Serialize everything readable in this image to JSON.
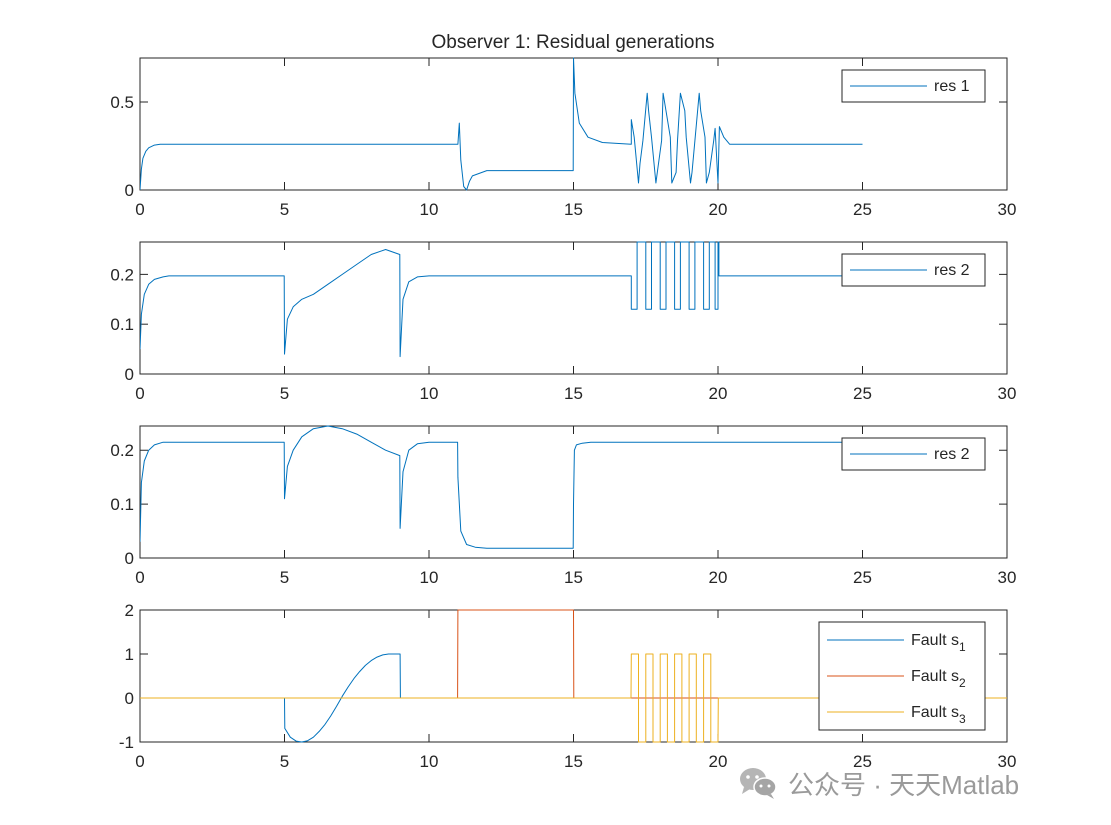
{
  "figure": {
    "title": "Observer 1: Residual generations",
    "watermark_text": "公众号 · 天天Matlab",
    "watermark_icon": "wechat-icon"
  },
  "chart_data": [
    {
      "type": "line",
      "title": "Observer 1: Residual generations",
      "xlim": [
        0,
        30
      ],
      "ylim": [
        0,
        0.75
      ],
      "xticks": [
        0,
        5,
        10,
        15,
        20,
        25,
        30
      ],
      "yticks": [
        0,
        0.5
      ],
      "ytick_labels": [
        "0",
        "0.5"
      ],
      "grid": false,
      "legend_position": "top-right",
      "series": [
        {
          "name": "res 1",
          "color": "#0072BD",
          "x": [
            0,
            0.05,
            0.1,
            0.2,
            0.3,
            0.5,
            0.7,
            1,
            11,
            11.05,
            11.1,
            11.2,
            11.3,
            11.4,
            11.5,
            12,
            14.99,
            15,
            15.05,
            15.2,
            15.5,
            16,
            17,
            17,
            17.1,
            17.25,
            17.3,
            17.4,
            17.55,
            17.6,
            17.7,
            17.85,
            17.9,
            18.05,
            18.1,
            18.2,
            18.35,
            18.4,
            18.55,
            18.6,
            18.7,
            18.85,
            18.9,
            19.05,
            19.1,
            19.2,
            19.35,
            19.4,
            19.55,
            19.6,
            19.7,
            19.85,
            19.9,
            20,
            20.05,
            20.2,
            20.4,
            25
          ],
          "y": [
            0,
            0.12,
            0.18,
            0.22,
            0.24,
            0.255,
            0.26,
            0.26,
            0.26,
            0.38,
            0.17,
            0.02,
            0,
            0.05,
            0.08,
            0.11,
            0.11,
            0.75,
            0.55,
            0.38,
            0.3,
            0.27,
            0.26,
            0.4,
            0.3,
            0.04,
            0.15,
            0.28,
            0.55,
            0.45,
            0.3,
            0.04,
            0.1,
            0.28,
            0.55,
            0.45,
            0.3,
            0.04,
            0.1,
            0.28,
            0.55,
            0.45,
            0.3,
            0.04,
            0.1,
            0.28,
            0.55,
            0.45,
            0.3,
            0.04,
            0.1,
            0.28,
            0.35,
            0.04,
            0.36,
            0.3,
            0.26,
            0.26
          ]
        }
      ]
    },
    {
      "type": "line",
      "xlim": [
        0,
        30
      ],
      "ylim": [
        0,
        0.265
      ],
      "xticks": [
        0,
        5,
        10,
        15,
        20,
        25,
        30
      ],
      "yticks": [
        0,
        0.1,
        0.2
      ],
      "ytick_labels": [
        "0",
        "0.1",
        "0.2"
      ],
      "grid": false,
      "legend_position": "top-right",
      "series": [
        {
          "name": "res 2",
          "color": "#0072BD",
          "x": [
            0,
            0.05,
            0.15,
            0.3,
            0.5,
            0.8,
            1,
            4.99,
            5,
            5.1,
            5.3,
            5.6,
            6,
            6.5,
            7,
            7.5,
            8,
            8.5,
            8.99,
            9,
            9.1,
            9.3,
            9.6,
            10,
            17,
            17,
            17.2,
            17.2,
            17.5,
            17.5,
            17.7,
            17.7,
            18,
            18,
            18.2,
            18.2,
            18.5,
            18.5,
            18.7,
            18.7,
            19,
            19,
            19.2,
            19.2,
            19.5,
            19.5,
            19.7,
            19.7,
            19.9,
            19.9,
            20,
            20,
            20.03,
            20.03,
            25
          ],
          "y": [
            0.05,
            0.12,
            0.16,
            0.18,
            0.19,
            0.195,
            0.197,
            0.197,
            0.04,
            0.11,
            0.135,
            0.15,
            0.16,
            0.18,
            0.2,
            0.22,
            0.24,
            0.25,
            0.24,
            0.035,
            0.15,
            0.185,
            0.195,
            0.197,
            0.197,
            0.13,
            0.13,
            0.265,
            0.265,
            0.13,
            0.13,
            0.265,
            0.265,
            0.13,
            0.13,
            0.265,
            0.265,
            0.13,
            0.13,
            0.265,
            0.265,
            0.13,
            0.13,
            0.265,
            0.265,
            0.13,
            0.13,
            0.265,
            0.265,
            0.13,
            0.13,
            0.265,
            0.265,
            0.197,
            0.197
          ]
        }
      ]
    },
    {
      "type": "line",
      "xlim": [
        0,
        30
      ],
      "ylim": [
        0,
        0.245
      ],
      "xticks": [
        0,
        5,
        10,
        15,
        20,
        25,
        30
      ],
      "yticks": [
        0,
        0.1,
        0.2
      ],
      "ytick_labels": [
        "0",
        "0.1",
        "0.2"
      ],
      "grid": false,
      "legend_position": "top-right",
      "series": [
        {
          "name": "res 2",
          "color": "#0072BD",
          "x": [
            0,
            0.05,
            0.15,
            0.3,
            0.5,
            0.8,
            1,
            4.99,
            5,
            5.1,
            5.3,
            5.6,
            6,
            6.5,
            7,
            7.5,
            8,
            8.5,
            8.99,
            9,
            9.1,
            9.3,
            9.6,
            10,
            10.99,
            11,
            11.1,
            11.3,
            11.6,
            12,
            14.99,
            15,
            15.03,
            15.1,
            15.3,
            15.6,
            25
          ],
          "y": [
            0.03,
            0.14,
            0.18,
            0.2,
            0.21,
            0.215,
            0.215,
            0.215,
            0.11,
            0.17,
            0.2,
            0.225,
            0.24,
            0.245,
            0.24,
            0.23,
            0.215,
            0.2,
            0.19,
            0.055,
            0.16,
            0.2,
            0.212,
            0.215,
            0.215,
            0.15,
            0.05,
            0.025,
            0.02,
            0.018,
            0.018,
            0.1,
            0.2,
            0.21,
            0.213,
            0.215,
            0.215
          ]
        }
      ]
    },
    {
      "type": "line",
      "xlim": [
        0,
        30
      ],
      "ylim": [
        -1,
        2
      ],
      "xticks": [
        0,
        5,
        10,
        15,
        20,
        25,
        30
      ],
      "yticks": [
        -1,
        0,
        1,
        2
      ],
      "ytick_labels": [
        "-1",
        "0",
        "1",
        "2"
      ],
      "grid": false,
      "legend_position": "top-right",
      "series": [
        {
          "name": "Fault s",
          "name_subscript": "1",
          "color": "#0072BD",
          "x": [
            0,
            4.99,
            5,
            5.01,
            5.2,
            5.4,
            5.6,
            5.8,
            6.0,
            6.2,
            6.4,
            6.6,
            6.8,
            7.0,
            7.2,
            7.4,
            7.6,
            7.8,
            8.0,
            8.2,
            8.4,
            8.6,
            8.8,
            8.99,
            9,
            9.01,
            30
          ],
          "y": [
            0,
            0,
            0,
            -0.69,
            -0.89,
            -0.98,
            -1.0,
            -0.97,
            -0.89,
            -0.76,
            -0.6,
            -0.41,
            -0.19,
            0.04,
            0.25,
            0.44,
            0.6,
            0.74,
            0.85,
            0.93,
            0.98,
            1.0,
            1.0,
            1.0,
            1.0,
            0,
            0
          ]
        },
        {
          "name": "Fault s",
          "name_subscript": "2",
          "color": "#D95319",
          "x": [
            0,
            10.99,
            11,
            15,
            15.01,
            30
          ],
          "y": [
            0,
            0,
            2,
            2,
            0,
            0
          ]
        },
        {
          "name": "Fault s",
          "name_subscript": "3",
          "color": "#EDB120",
          "x": [
            0,
            16.99,
            17,
            17.25,
            17.25,
            17.5,
            17.5,
            17.75,
            17.75,
            18.0,
            18.0,
            18.25,
            18.25,
            18.5,
            18.5,
            18.75,
            18.75,
            19.0,
            19.0,
            19.25,
            19.25,
            19.5,
            19.5,
            19.75,
            19.75,
            20.0,
            20.01,
            30
          ],
          "y": [
            0,
            0,
            1,
            1,
            -1,
            -1,
            1,
            1,
            -1,
            -1,
            1,
            1,
            -1,
            -1,
            1,
            1,
            -1,
            -1,
            1,
            1,
            -1,
            -1,
            1,
            1,
            -1,
            -1,
            0,
            0
          ]
        }
      ]
    }
  ]
}
